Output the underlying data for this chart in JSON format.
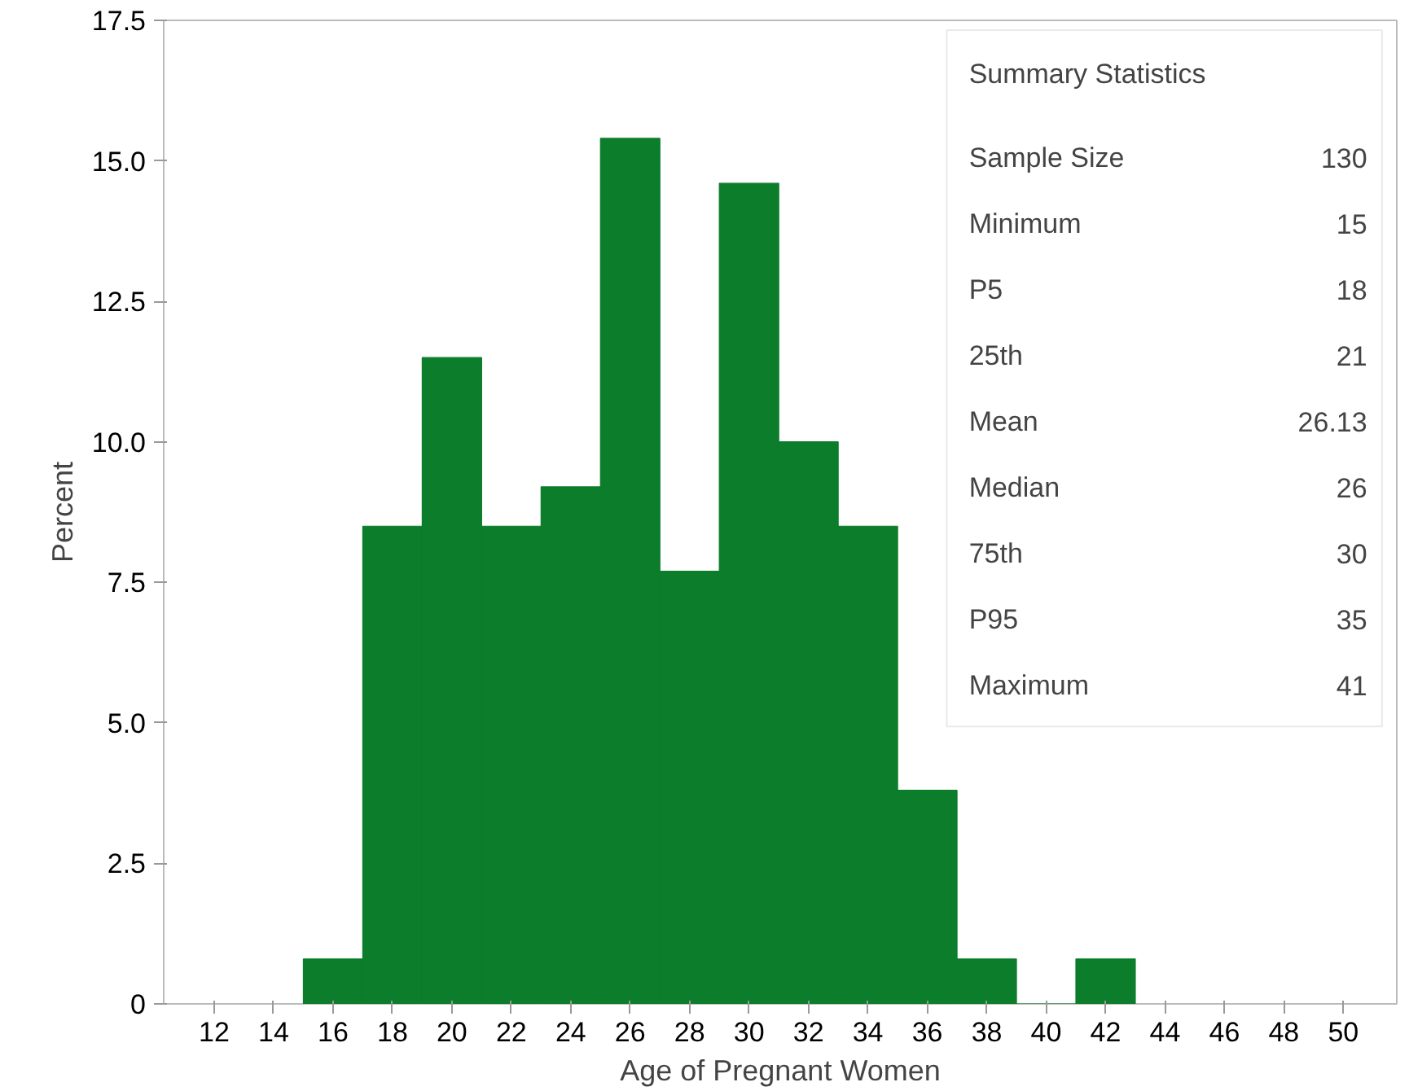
{
  "chart_data": {
    "type": "histogram",
    "xlabel": "Age of Pregnant Women",
    "ylabel": "Percent",
    "bins": [
      15,
      17,
      19,
      21,
      23,
      25,
      27,
      29,
      31,
      33,
      35,
      37,
      39,
      41,
      43
    ],
    "values": [
      0.8,
      8.5,
      11.5,
      8.5,
      9.2,
      15.4,
      7.7,
      14.6,
      10.0,
      8.5,
      3.8,
      0.8,
      0,
      0.8
    ],
    "color": "#0b7d2b",
    "xlim": [
      10.3,
      51.8
    ],
    "ylim": [
      0,
      17.5
    ],
    "xticks": [
      12,
      14,
      16,
      18,
      20,
      22,
      24,
      26,
      28,
      30,
      32,
      34,
      36,
      38,
      40,
      42,
      44,
      46,
      48,
      50
    ],
    "yticks": [
      {
        "value": 0,
        "label": "0"
      },
      2.5,
      {
        "value": 5,
        "label": "5.0"
      },
      7.5,
      {
        "value": 10,
        "label": "10.0"
      },
      12.5,
      {
        "value": 15,
        "label": "15.0"
      },
      17.5
    ],
    "grid": false,
    "annotations": [
      "Summary Statistics",
      "Sample Size",
      "130",
      "Minimum",
      "15",
      "P5",
      "18",
      "25th",
      "21",
      "Mean",
      "26.13",
      "Median",
      "26",
      "75th",
      "30",
      "P95",
      "35",
      "Maximum",
      "41"
    ]
  }
}
